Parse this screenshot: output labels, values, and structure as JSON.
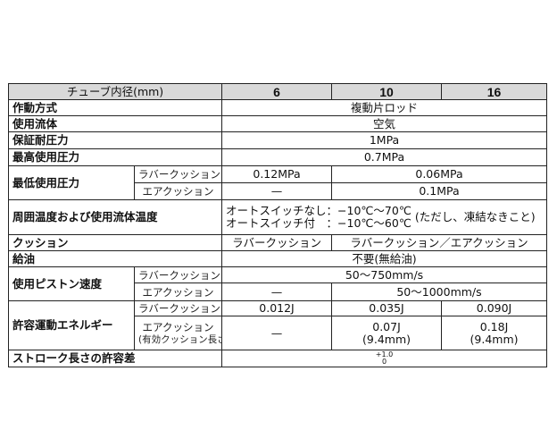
{
  "header": {
    "label": "チューブ内径(mm)",
    "sizes": [
      "6",
      "10",
      "16"
    ]
  },
  "rows": {
    "action": {
      "label": "作動方式",
      "value": "複動片ロッド"
    },
    "fluid": {
      "label": "使用流体",
      "value": "空気"
    },
    "proof": {
      "label": "保証耐圧力",
      "value": "1MPa"
    },
    "max_pressure": {
      "label": "最高使用圧力",
      "value": "0.7MPa"
    },
    "min_pressure": {
      "label": "最低使用圧力",
      "rubber_label": "ラバークッション",
      "rubber_6": "0.12MPa",
      "rubber_10_16": "0.06MPa",
      "air_label": "エアクッション",
      "air_6": "—",
      "air_10_16": "0.1MPa"
    },
    "temperature": {
      "label": "周囲温度および使用流体温度",
      "line1": "オートスイッチなし：−10℃〜70℃",
      "line2": "オートスイッチ付　：−10℃〜60℃",
      "note": "(ただし、凍結なきこと)"
    },
    "cushion": {
      "label": "クッション",
      "value_6": "ラバークッション",
      "value_10_16": "ラバークッション／エアクッション"
    },
    "lubrication": {
      "label": "給油",
      "value": "不要(無給油)"
    },
    "piston_speed": {
      "label": "使用ピストン速度",
      "rubber_label": "ラバークッション",
      "rubber_value": "50〜750mm/s",
      "air_label": "エアクッション",
      "air_6": "—",
      "air_10_16": "50〜1000mm/s"
    },
    "energy": {
      "label": "許容運動エネルギー",
      "rubber_label": "ラバークッション",
      "rubber": [
        "0.012J",
        "0.035J",
        "0.090J"
      ],
      "air_label": "エアクッション",
      "air_sublabel": "(有効クッション長さ)",
      "air_6": "—",
      "air_10": "0.07J",
      "air_10_len": "(9.4mm)",
      "air_16": "0.18J",
      "air_16_len": "(9.4mm)"
    },
    "stroke": {
      "label": "ストローク長さの許容差",
      "upper": "+1.0",
      "lower": "0"
    }
  }
}
